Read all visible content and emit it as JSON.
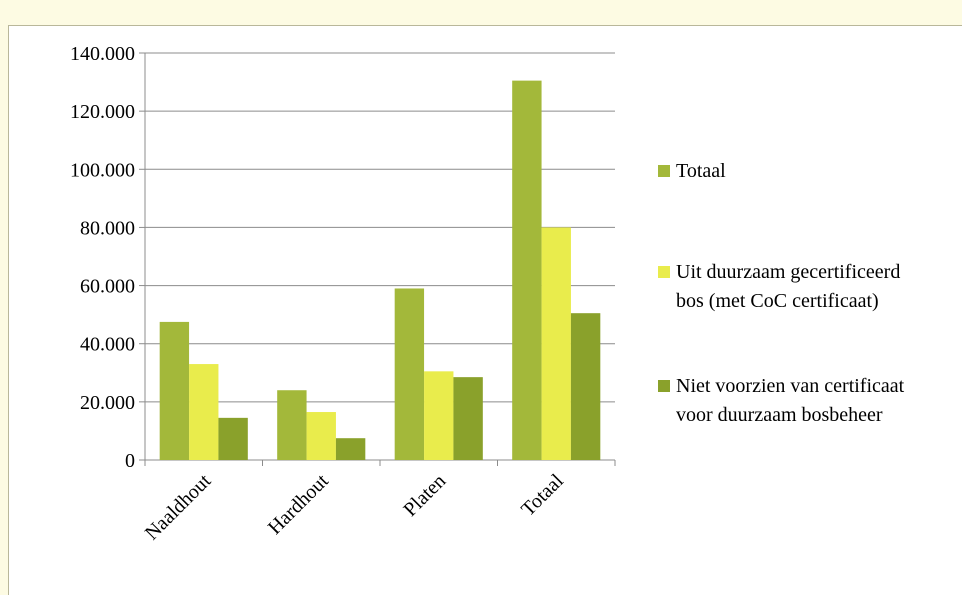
{
  "chart_data": {
    "type": "bar",
    "categories": [
      "Naaldhout",
      "Hardhout",
      "Platen",
      "Totaal"
    ],
    "series": [
      {
        "name": "Totaal",
        "color": "#a3b83a",
        "values": [
          47500,
          24000,
          59000,
          130500
        ]
      },
      {
        "name": "Uit duurzaam gecertificeerd bos (met CoC certificaat)",
        "color": "#e9ec4c",
        "values": [
          33000,
          16500,
          30500,
          80000
        ]
      },
      {
        "name": "Niet voorzien van certificaat voor duurzaam bosbeheer",
        "color": "#8aa12b",
        "values": [
          14500,
          7500,
          28500,
          50500
        ]
      }
    ],
    "ylim": [
      0,
      140000
    ],
    "yticks": [
      0,
      {
        "value": 20000,
        "label": "20.000"
      },
      {
        "value": 40000,
        "label": "40.000"
      },
      {
        "value": 60000,
        "label": "60.000"
      },
      {
        "value": 80000,
        "label": "80.000"
      },
      {
        "value": 100000,
        "label": "100.000"
      },
      {
        "value": 120000,
        "label": "120.000"
      },
      {
        "value": 140000,
        "label": "140.000"
      }
    ],
    "grid": true,
    "legend": "right"
  }
}
